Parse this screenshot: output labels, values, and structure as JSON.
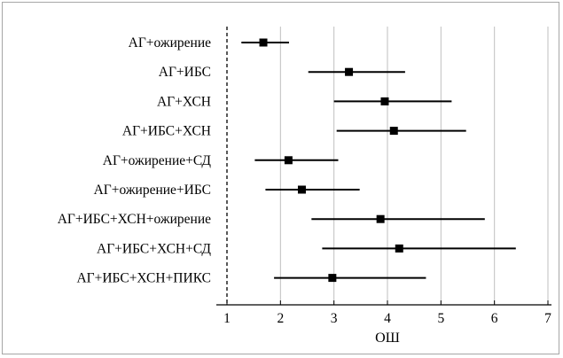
{
  "chart_data": {
    "type": "forest",
    "xlabel": "ОШ",
    "xlim": [
      1,
      7
    ],
    "xticks": [
      1,
      2,
      3,
      4,
      5,
      6,
      7
    ],
    "reference_line": 1,
    "vertical_grid": true,
    "rows": [
      {
        "label": "АГ+ожирение",
        "or": 1.68,
        "lo": 1.27,
        "hi": 2.16
      },
      {
        "label": "АГ+ИБС",
        "or": 3.28,
        "lo": 2.52,
        "hi": 4.33
      },
      {
        "label": "АГ+ХСН",
        "or": 3.95,
        "lo": 3.0,
        "hi": 5.2
      },
      {
        "label": "АГ+ИБС+ХСН",
        "or": 4.12,
        "lo": 3.05,
        "hi": 5.47
      },
      {
        "label": "АГ+ожирение+СД",
        "or": 2.15,
        "lo": 1.52,
        "hi": 3.08
      },
      {
        "label": "АГ+ожирение+ИБС",
        "or": 2.4,
        "lo": 1.72,
        "hi": 3.48
      },
      {
        "label": "АГ+ИБС+ХСН+ожирение",
        "or": 3.87,
        "lo": 2.58,
        "hi": 5.82
      },
      {
        "label": "АГ+ИБС+ХСН+СД",
        "or": 4.22,
        "lo": 2.78,
        "hi": 6.4
      },
      {
        "label": "АГ+ИБС+ХСН+ПИКС",
        "or": 2.97,
        "lo": 1.88,
        "hi": 4.72
      }
    ],
    "colors": {
      "marker": "#000000",
      "grid": "#bfbfbf",
      "reference": "#000000"
    }
  }
}
